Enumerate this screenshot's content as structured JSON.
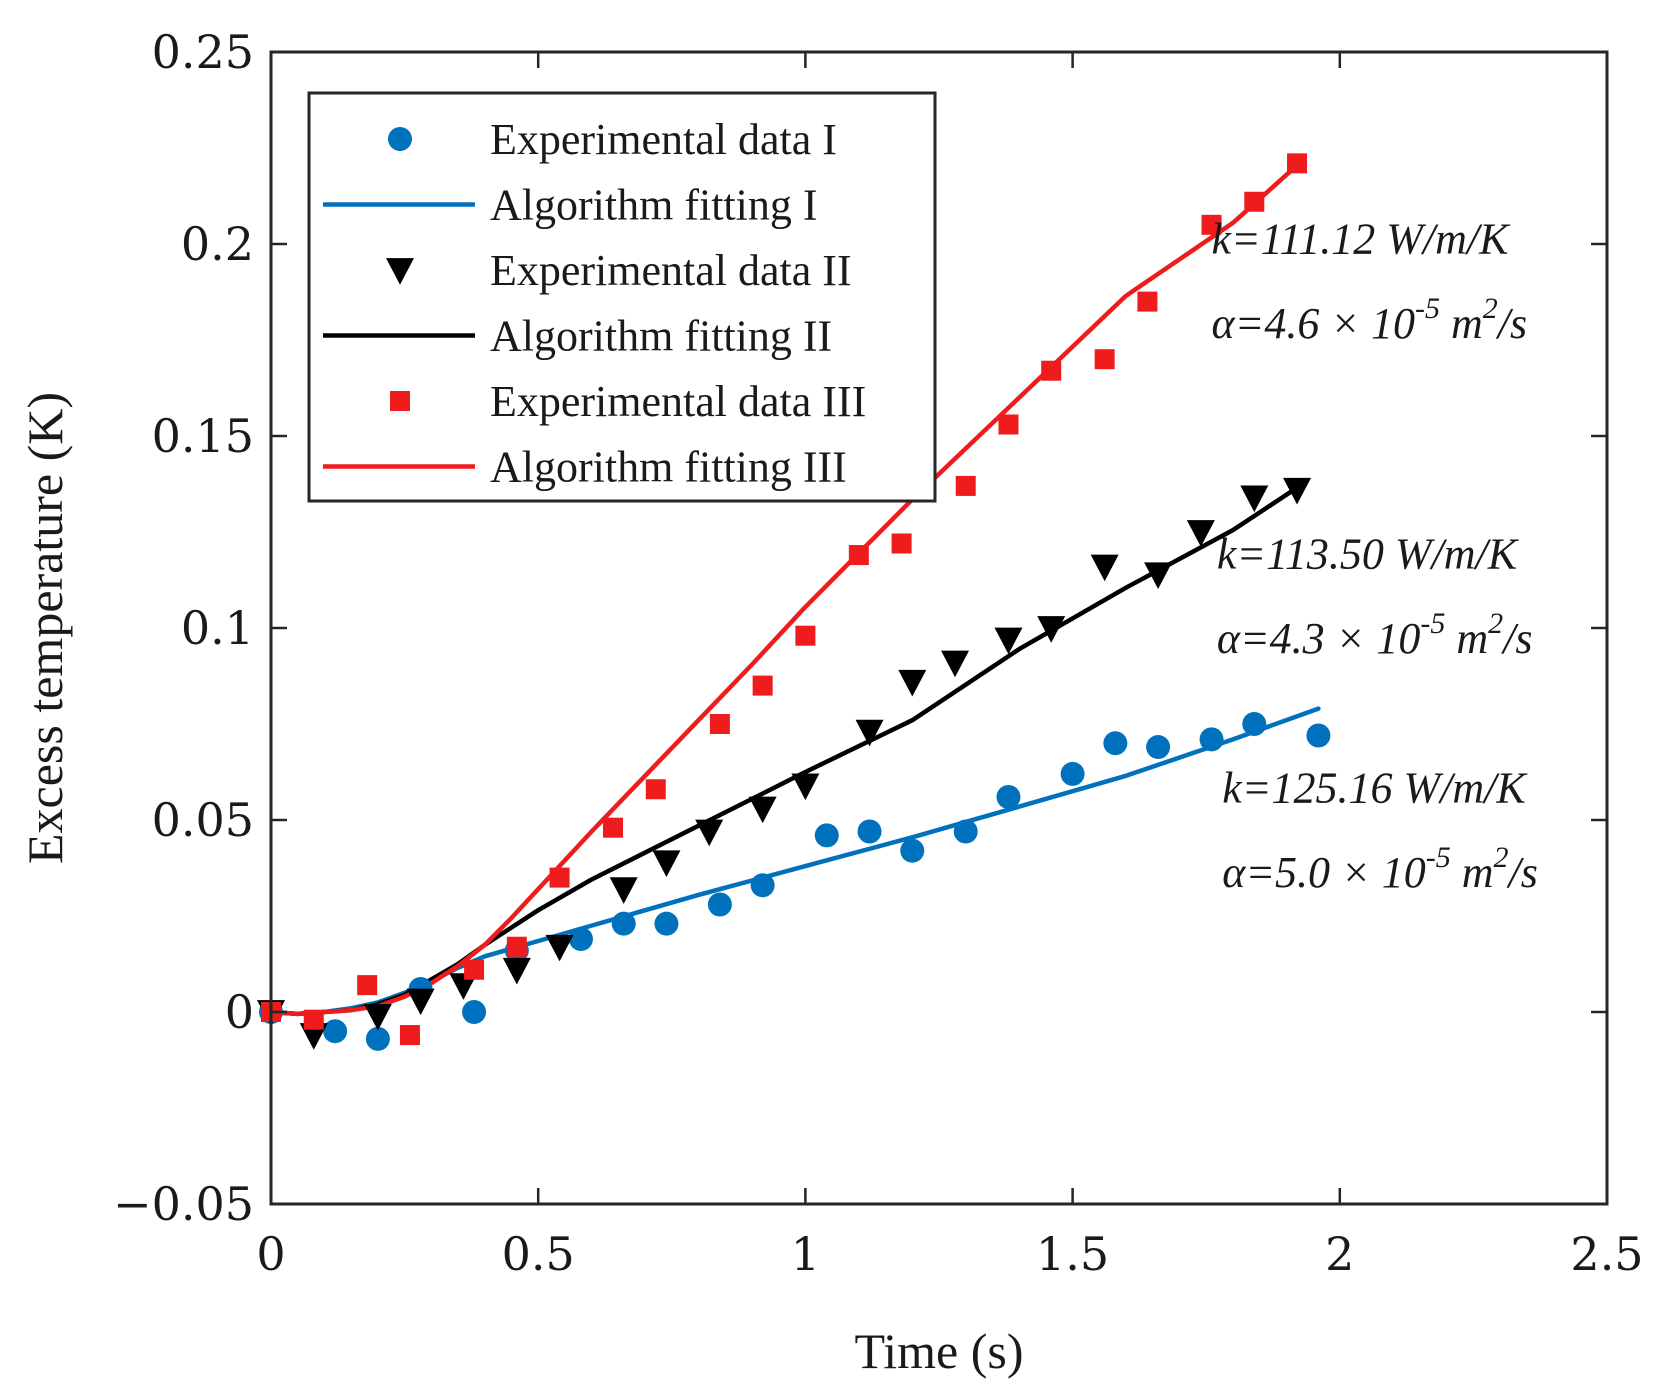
{
  "chart_data": {
    "type": "scatter",
    "title": "",
    "xlabel": "Time (s)",
    "ylabel": "Excess temperature (K)",
    "xlim": [
      0,
      2.5
    ],
    "ylim": [
      -0.05,
      0.25
    ],
    "xticks": [
      0,
      0.5,
      1,
      1.5,
      2,
      2.5
    ],
    "xtick_labels": [
      "0",
      "0.5",
      "1",
      "1.5",
      "2",
      "2.5"
    ],
    "yticks": [
      -0.05,
      0,
      0.05,
      0.1,
      0.15,
      0.2,
      0.25
    ],
    "ytick_labels": [
      "−0.05",
      "0",
      "0.05",
      "0.1",
      "0.15",
      "0.2",
      "0.25"
    ],
    "grid": false,
    "legend_position": "top-left",
    "series": [
      {
        "name": "Experimental data I",
        "kind": "scatter",
        "marker": "circle",
        "color": "#0072BD",
        "points": [
          [
            0,
            0
          ],
          [
            0.12,
            -0.005
          ],
          [
            0.2,
            -0.007
          ],
          [
            0.28,
            0.006
          ],
          [
            0.38,
            0
          ],
          [
            0.46,
            0.016
          ],
          [
            0.58,
            0.019
          ],
          [
            0.66,
            0.023
          ],
          [
            0.74,
            0.023
          ],
          [
            0.84,
            0.028
          ],
          [
            0.92,
            0.033
          ],
          [
            1.04,
            0.046
          ],
          [
            1.12,
            0.047
          ],
          [
            1.2,
            0.042
          ],
          [
            1.3,
            0.047
          ],
          [
            1.38,
            0.056
          ],
          [
            1.5,
            0.062
          ],
          [
            1.58,
            0.07
          ],
          [
            1.66,
            0.069
          ],
          [
            1.76,
            0.071
          ],
          [
            1.84,
            0.075
          ],
          [
            1.96,
            0.072
          ]
        ]
      },
      {
        "name": "Algorithm fitting I",
        "kind": "line",
        "color": "#0072BD",
        "points": [
          [
            0,
            0
          ],
          [
            0.05,
            -0.0005
          ],
          [
            0.1,
            0
          ],
          [
            0.15,
            0.001
          ],
          [
            0.2,
            0.0025
          ],
          [
            0.25,
            0.005
          ],
          [
            0.3,
            0.008
          ],
          [
            0.35,
            0.0115
          ],
          [
            0.4,
            0.0145
          ],
          [
            0.5,
            0.0185
          ],
          [
            0.6,
            0.0225
          ],
          [
            0.8,
            0.0305
          ],
          [
            1.0,
            0.038
          ],
          [
            1.2,
            0.0455
          ],
          [
            1.4,
            0.0535
          ],
          [
            1.6,
            0.0615
          ],
          [
            1.8,
            0.071
          ],
          [
            1.96,
            0.079
          ]
        ]
      },
      {
        "name": "Experimental data II",
        "kind": "scatter",
        "marker": "triangle-down",
        "color": "#000000",
        "points": [
          [
            0,
            0
          ],
          [
            0.08,
            -0.006
          ],
          [
            0.2,
            -0.001
          ],
          [
            0.28,
            0.003
          ],
          [
            0.36,
            0.007
          ],
          [
            0.46,
            0.011
          ],
          [
            0.54,
            0.017
          ],
          [
            0.66,
            0.032
          ],
          [
            0.74,
            0.039
          ],
          [
            0.82,
            0.047
          ],
          [
            0.92,
            0.053
          ],
          [
            1.0,
            0.059
          ],
          [
            1.12,
            0.073
          ],
          [
            1.2,
            0.086
          ],
          [
            1.28,
            0.091
          ],
          [
            1.38,
            0.097
          ],
          [
            1.46,
            0.1
          ],
          [
            1.56,
            0.116
          ],
          [
            1.66,
            0.114
          ],
          [
            1.74,
            0.125
          ],
          [
            1.84,
            0.134
          ],
          [
            1.92,
            0.136
          ]
        ]
      },
      {
        "name": "Algorithm fitting II",
        "kind": "line",
        "color": "#000000",
        "points": [
          [
            0,
            0
          ],
          [
            0.05,
            -0.0005
          ],
          [
            0.1,
            0
          ],
          [
            0.15,
            0.0005
          ],
          [
            0.2,
            0.002
          ],
          [
            0.25,
            0.0045
          ],
          [
            0.3,
            0.0085
          ],
          [
            0.35,
            0.0125
          ],
          [
            0.4,
            0.0175
          ],
          [
            0.45,
            0.022
          ],
          [
            0.5,
            0.0265
          ],
          [
            0.6,
            0.0345
          ],
          [
            0.8,
            0.0485
          ],
          [
            1.0,
            0.0625
          ],
          [
            1.2,
            0.076
          ],
          [
            1.4,
            0.0945
          ],
          [
            1.6,
            0.1105
          ],
          [
            1.8,
            0.1255
          ],
          [
            1.92,
            0.1365
          ]
        ]
      },
      {
        "name": "Experimental data III",
        "kind": "scatter",
        "marker": "square",
        "color": "#EE1C1C",
        "points": [
          [
            0,
            0
          ],
          [
            0.08,
            -0.002
          ],
          [
            0.18,
            0.007
          ],
          [
            0.26,
            -0.006
          ],
          [
            0.38,
            0.011
          ],
          [
            0.46,
            0.017
          ],
          [
            0.54,
            0.035
          ],
          [
            0.64,
            0.048
          ],
          [
            0.72,
            0.058
          ],
          [
            0.84,
            0.075
          ],
          [
            0.92,
            0.085
          ],
          [
            1.0,
            0.098
          ],
          [
            1.1,
            0.119
          ],
          [
            1.18,
            0.122
          ],
          [
            1.3,
            0.137
          ],
          [
            1.38,
            0.153
          ],
          [
            1.46,
            0.167
          ],
          [
            1.56,
            0.17
          ],
          [
            1.64,
            0.185
          ],
          [
            1.76,
            0.205
          ],
          [
            1.84,
            0.211
          ],
          [
            1.92,
            0.221
          ]
        ]
      },
      {
        "name": "Algorithm fitting III",
        "kind": "line",
        "color": "#EE1C1C",
        "points": [
          [
            0,
            0
          ],
          [
            0.05,
            -0.0005
          ],
          [
            0.1,
            0
          ],
          [
            0.15,
            0.0005
          ],
          [
            0.2,
            0.0015
          ],
          [
            0.25,
            0.004
          ],
          [
            0.3,
            0.0075
          ],
          [
            0.35,
            0.012
          ],
          [
            0.4,
            0.0175
          ],
          [
            0.45,
            0.0245
          ],
          [
            0.5,
            0.032
          ],
          [
            0.6,
            0.047
          ],
          [
            0.7,
            0.0615
          ],
          [
            0.8,
            0.076
          ],
          [
            0.9,
            0.0905
          ],
          [
            1.0,
            0.1055
          ],
          [
            1.2,
            0.1335
          ],
          [
            1.4,
            0.16
          ],
          [
            1.6,
            0.1865
          ],
          [
            1.8,
            0.2055
          ],
          [
            1.92,
            0.2205
          ]
        ]
      }
    ],
    "annotations": [
      {
        "id": "III",
        "x": 1.76,
        "k": "k=111.12 W/m/K",
        "alpha_prefix": "α=4.6 × 10",
        "alpha_exp": "-5",
        "alpha_unit": " m",
        "alpha_unit_exp": "2",
        "alpha_suffix": "/s",
        "k_y": 0.1975,
        "a_y": 0.1755
      },
      {
        "id": "II",
        "x": 1.77,
        "k": "k=113.50 W/m/K",
        "alpha_prefix": "α=4.3 × 10",
        "alpha_exp": "-5",
        "alpha_unit": " m",
        "alpha_unit_exp": "2",
        "alpha_suffix": "/s",
        "k_y": 0.1155,
        "a_y": 0.0935
      },
      {
        "id": "I",
        "x": 1.78,
        "k": "k=125.16 W/m/K",
        "alpha_prefix": "α=5.0 × 10",
        "alpha_exp": "-5",
        "alpha_unit": " m",
        "alpha_unit_exp": "2",
        "alpha_suffix": "/s",
        "k_y": 0.0545,
        "a_y": 0.0325
      }
    ]
  }
}
